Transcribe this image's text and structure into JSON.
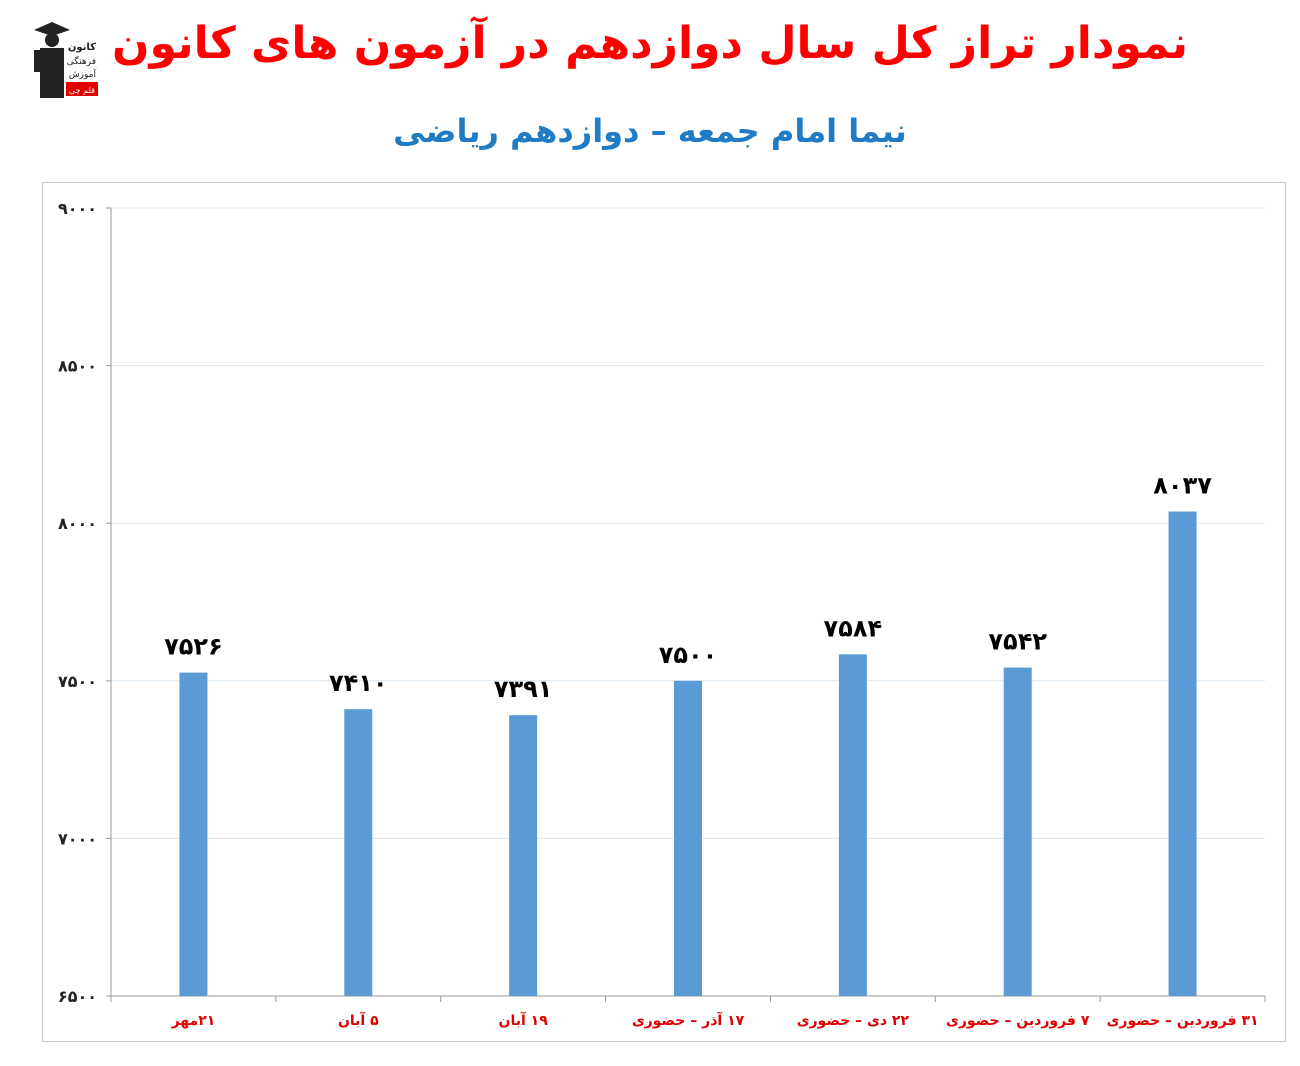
{
  "header": {
    "title": "نمودار تراز کل سال دوازدهم در آزمون های کانون",
    "subtitle": "نیما امام جمعه – دوازدهم ریاضی"
  },
  "logo": {
    "line1": "کانون",
    "line2": "فرهنگی",
    "line3": "آموزش",
    "badge": "قلم چی"
  },
  "colors": {
    "title": "#ff0000",
    "subtitle": "#1f7bc3",
    "bar": "#5b9bd5",
    "category_label": "#e00000",
    "value_label": "#000000",
    "grid": "#d9e6f0",
    "axis": "#9a9a9a"
  },
  "chart_data": {
    "type": "bar",
    "title": "",
    "xlabel": "",
    "ylabel": "",
    "ylim": [
      6500,
      9000
    ],
    "yticks": [
      6500,
      7000,
      7500,
      8000,
      8500,
      9000
    ],
    "ytick_labels": [
      "۶۵۰۰",
      "۷۰۰۰",
      "۷۵۰۰",
      "۸۰۰۰",
      "۸۵۰۰",
      "۹۰۰۰"
    ],
    "grid": true,
    "categories": [
      "۲۱مهر",
      "۵ آبان",
      "۱۹ آبان",
      "۱۷ آذر – حضوری",
      "۲۲ دی – حضوری",
      "۷ فروردین – حضوری",
      "۳۱ فروردین – حضوری"
    ],
    "values": [
      7526,
      7410,
      7391,
      7500,
      7584,
      7542,
      8037
    ],
    "value_labels": [
      "۷۵۲۶",
      "۷۴۱۰",
      "۷۳۹۱",
      "۷۵۰۰",
      "۷۵۸۴",
      "۷۵۴۲",
      "۸۰۳۷"
    ]
  }
}
